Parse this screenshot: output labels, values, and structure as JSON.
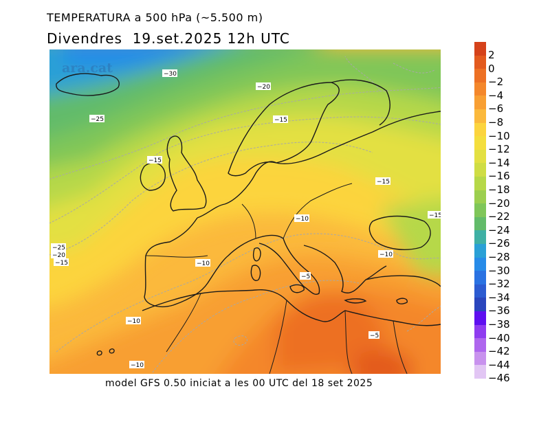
{
  "header": {
    "title": "TEMPERATURA a 500 hPa (~5.500 m)",
    "subtitle": "Divendres  19.set.2025 12h UTC"
  },
  "footer": {
    "text": "model GFS 0.50 iniciat a les 00 UTC del 18 set 2025"
  },
  "watermark": {
    "text": "ara.cat"
  },
  "legend": {
    "labels": [
      "2",
      "0",
      "−2",
      "−4",
      "−6",
      "−8",
      "−10",
      "−12",
      "−14",
      "−16",
      "−18",
      "−20",
      "−22",
      "−24",
      "−26",
      "−28",
      "−30",
      "−32",
      "−34",
      "−36",
      "−38",
      "−40",
      "−42",
      "−44",
      "−46"
    ],
    "colors": [
      "#d5421a",
      "#e35a1e",
      "#ed7024",
      "#f4872b",
      "#f89f33",
      "#fbb93c",
      "#fcd43e",
      "#f4de3d",
      "#e3e042",
      "#cfdd44",
      "#b6d848",
      "#9ccf4f",
      "#7fc659",
      "#62bb6a",
      "#3fb0a4",
      "#2aa0d6",
      "#278be8",
      "#2a72e2",
      "#2c5bd1",
      "#2a45bd",
      "#5e0ff0",
      "#8f3cf0",
      "#ae66ee",
      "#c892ee",
      "#e2c6f4"
    ]
  },
  "contour_labels": [
    "−30",
    "−20",
    "−25",
    "−15",
    "−15",
    "−15",
    "−10",
    "−15",
    "−25",
    "−20",
    "−15",
    "−10",
    "−5",
    "−10",
    "−10",
    "−5",
    "−10"
  ]
}
